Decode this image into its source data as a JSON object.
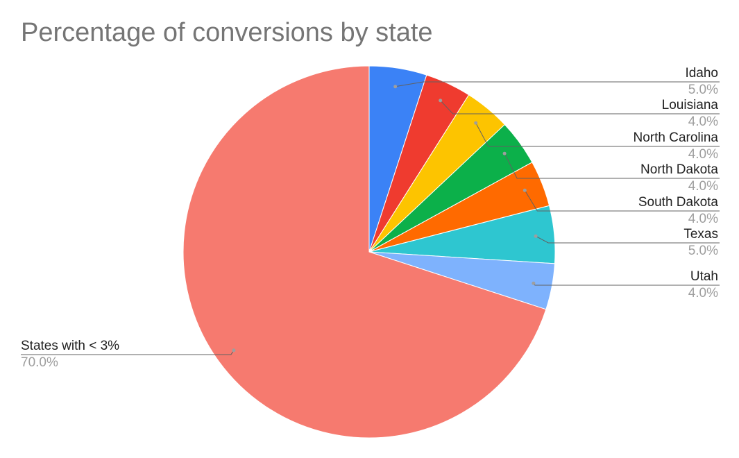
{
  "chart_data": {
    "type": "pie",
    "title": "Percentage of conversions by state",
    "slices": [
      {
        "label": "Idaho",
        "value": 5.0,
        "display": "5.0%",
        "color": "#3b82f6"
      },
      {
        "label": "Louisiana",
        "value": 4.0,
        "display": "4.0%",
        "color": "#ef3b2f"
      },
      {
        "label": "North Carolina",
        "value": 4.0,
        "display": "4.0%",
        "color": "#fdc400"
      },
      {
        "label": "North Dakota",
        "value": 4.0,
        "display": "4.0%",
        "color": "#0cb04a"
      },
      {
        "label": "South Dakota",
        "value": 4.0,
        "display": "4.0%",
        "color": "#ff6a00"
      },
      {
        "label": "Texas",
        "value": 5.0,
        "display": "5.0%",
        "color": "#2ec6d0"
      },
      {
        "label": "Utah",
        "value": 4.0,
        "display": "4.0%",
        "color": "#7eb2fd"
      },
      {
        "label": "States with < 3%",
        "value": 70.0,
        "display": "70.0%",
        "color": "#f67a6f"
      }
    ],
    "label_style": "leader-lines",
    "start_angle": "12 o'clock, clockwise"
  }
}
